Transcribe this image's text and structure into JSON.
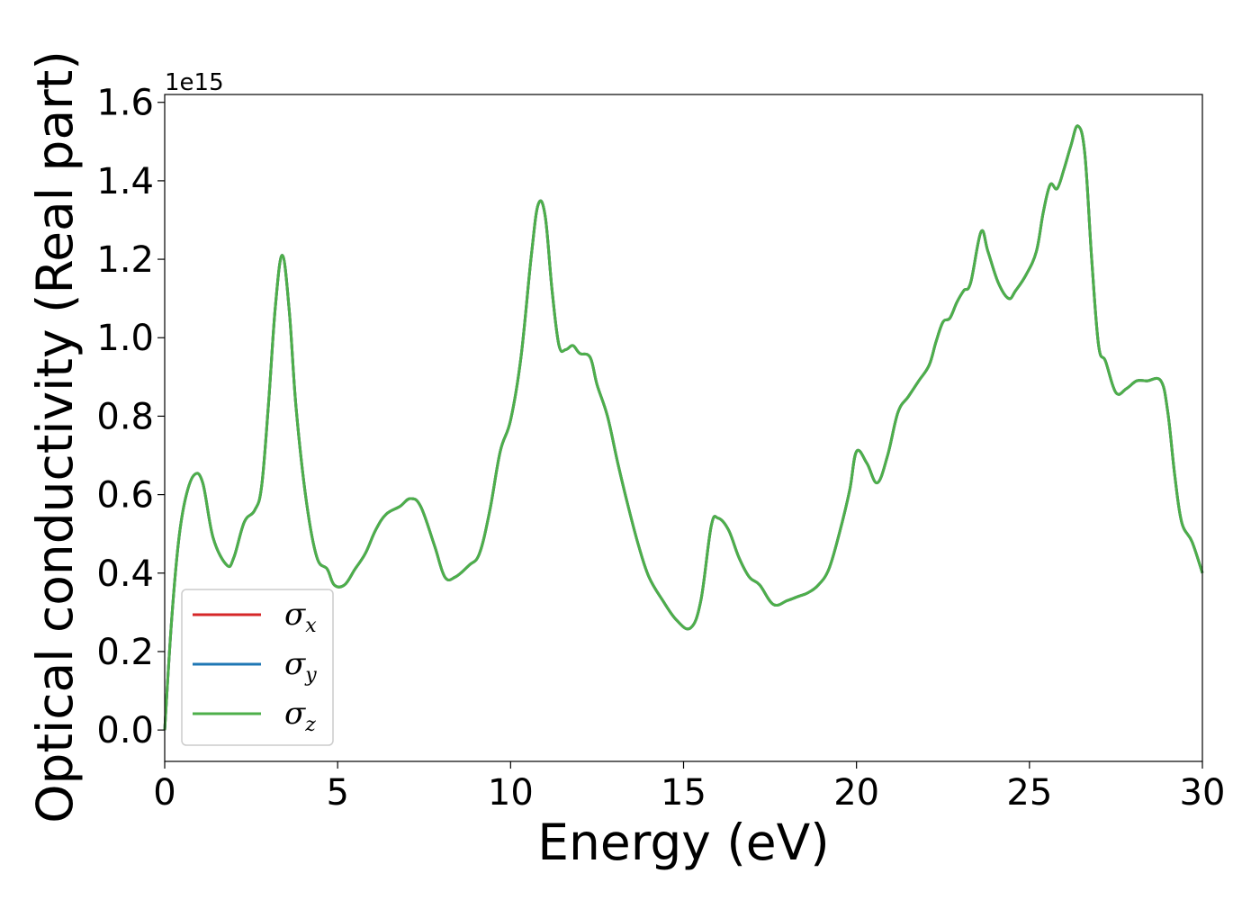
{
  "chart_data": {
    "type": "line",
    "xlabel": "Energy (eV)",
    "ylabel": "Optical conductivity (Real part)",
    "y_offset_label": "1e15",
    "xlim": [
      0,
      30
    ],
    "ylim": [
      -0.08,
      1.62
    ],
    "x_ticks": [
      0,
      5,
      10,
      15,
      20,
      25,
      30
    ],
    "x_tick_labels": [
      "0",
      "5",
      "10",
      "15",
      "20",
      "25",
      "30"
    ],
    "y_ticks": [
      0.0,
      0.2,
      0.4,
      0.6,
      0.8,
      1.0,
      1.2,
      1.4,
      1.6
    ],
    "y_tick_labels": [
      "0.0",
      "0.2",
      "0.4",
      "0.6",
      "0.8",
      "1.0",
      "1.2",
      "1.4",
      "1.6"
    ],
    "grid": false,
    "legend_position": "lower-left",
    "x": [
      0,
      0.2,
      0.4,
      0.6,
      0.85,
      1.1,
      1.4,
      1.8,
      2.0,
      2.3,
      2.6,
      2.8,
      3.0,
      3.2,
      3.4,
      3.6,
      3.8,
      4.1,
      4.4,
      4.7,
      4.9,
      5.2,
      5.5,
      5.8,
      6.1,
      6.4,
      6.8,
      7.1,
      7.4,
      7.8,
      8.1,
      8.4,
      8.8,
      9.1,
      9.4,
      9.7,
      10.0,
      10.3,
      10.6,
      10.8,
      11.0,
      11.2,
      11.4,
      11.6,
      11.8,
      12.0,
      12.3,
      12.5,
      12.8,
      13.1,
      13.4,
      13.7,
      14.0,
      14.4,
      14.8,
      15.2,
      15.5,
      15.8,
      16.0,
      16.3,
      16.6,
      16.9,
      17.2,
      17.6,
      18.0,
      18.3,
      18.6,
      18.9,
      19.2,
      19.5,
      19.8,
      20.0,
      20.3,
      20.6,
      20.9,
      21.2,
      21.5,
      21.8,
      22.1,
      22.3,
      22.5,
      22.7,
      22.9,
      23.1,
      23.3,
      23.6,
      23.8,
      24.1,
      24.4,
      24.6,
      24.9,
      25.2,
      25.4,
      25.6,
      25.8,
      26.0,
      26.2,
      26.4,
      26.6,
      26.8,
      27.0,
      27.2,
      27.5,
      27.8,
      28.1,
      28.4,
      28.8,
      29.0,
      29.2,
      29.4,
      29.7,
      30.0
    ],
    "series": [
      {
        "name": "σx",
        "color": "#d62728",
        "values": [
          0.0,
          0.28,
          0.48,
          0.59,
          0.65,
          0.63,
          0.49,
          0.42,
          0.44,
          0.53,
          0.56,
          0.62,
          0.83,
          1.08,
          1.21,
          1.07,
          0.82,
          0.58,
          0.44,
          0.41,
          0.37,
          0.37,
          0.41,
          0.45,
          0.51,
          0.55,
          0.57,
          0.59,
          0.57,
          0.47,
          0.39,
          0.39,
          0.42,
          0.45,
          0.56,
          0.71,
          0.79,
          0.95,
          1.21,
          1.34,
          1.31,
          1.12,
          0.98,
          0.97,
          0.98,
          0.96,
          0.95,
          0.88,
          0.8,
          0.68,
          0.57,
          0.47,
          0.39,
          0.33,
          0.28,
          0.26,
          0.33,
          0.52,
          0.54,
          0.51,
          0.44,
          0.39,
          0.37,
          0.32,
          0.33,
          0.34,
          0.35,
          0.37,
          0.41,
          0.5,
          0.61,
          0.71,
          0.68,
          0.63,
          0.7,
          0.81,
          0.85,
          0.89,
          0.93,
          0.99,
          1.04,
          1.05,
          1.09,
          1.12,
          1.14,
          1.27,
          1.22,
          1.14,
          1.1,
          1.12,
          1.16,
          1.22,
          1.32,
          1.39,
          1.38,
          1.43,
          1.49,
          1.54,
          1.47,
          1.2,
          0.98,
          0.94,
          0.86,
          0.87,
          0.89,
          0.89,
          0.89,
          0.81,
          0.65,
          0.53,
          0.48,
          0.4
        ]
      },
      {
        "name": "σy",
        "color": "#1f77b4",
        "values": [
          0.0,
          0.28,
          0.48,
          0.59,
          0.65,
          0.63,
          0.49,
          0.42,
          0.44,
          0.53,
          0.56,
          0.62,
          0.83,
          1.08,
          1.21,
          1.07,
          0.82,
          0.58,
          0.44,
          0.41,
          0.37,
          0.37,
          0.41,
          0.45,
          0.51,
          0.55,
          0.57,
          0.59,
          0.57,
          0.47,
          0.39,
          0.39,
          0.42,
          0.45,
          0.56,
          0.71,
          0.79,
          0.95,
          1.21,
          1.34,
          1.31,
          1.12,
          0.98,
          0.97,
          0.98,
          0.96,
          0.95,
          0.88,
          0.8,
          0.68,
          0.57,
          0.47,
          0.39,
          0.33,
          0.28,
          0.26,
          0.33,
          0.52,
          0.54,
          0.51,
          0.44,
          0.39,
          0.37,
          0.32,
          0.33,
          0.34,
          0.35,
          0.37,
          0.41,
          0.5,
          0.61,
          0.71,
          0.68,
          0.63,
          0.7,
          0.81,
          0.85,
          0.89,
          0.93,
          0.99,
          1.04,
          1.05,
          1.09,
          1.12,
          1.14,
          1.27,
          1.22,
          1.14,
          1.1,
          1.12,
          1.16,
          1.22,
          1.32,
          1.39,
          1.38,
          1.43,
          1.49,
          1.54,
          1.47,
          1.2,
          0.98,
          0.94,
          0.86,
          0.87,
          0.89,
          0.89,
          0.89,
          0.81,
          0.65,
          0.53,
          0.48,
          0.4
        ]
      },
      {
        "name": "σz",
        "color": "#4daf4a",
        "values": [
          0.0,
          0.28,
          0.48,
          0.59,
          0.65,
          0.63,
          0.49,
          0.42,
          0.44,
          0.53,
          0.56,
          0.62,
          0.83,
          1.08,
          1.21,
          1.07,
          0.82,
          0.58,
          0.44,
          0.41,
          0.37,
          0.37,
          0.41,
          0.45,
          0.51,
          0.55,
          0.57,
          0.59,
          0.57,
          0.47,
          0.39,
          0.39,
          0.42,
          0.45,
          0.56,
          0.71,
          0.79,
          0.95,
          1.21,
          1.34,
          1.31,
          1.12,
          0.98,
          0.97,
          0.98,
          0.96,
          0.95,
          0.88,
          0.8,
          0.68,
          0.57,
          0.47,
          0.39,
          0.33,
          0.28,
          0.26,
          0.33,
          0.52,
          0.54,
          0.51,
          0.44,
          0.39,
          0.37,
          0.32,
          0.33,
          0.34,
          0.35,
          0.37,
          0.41,
          0.5,
          0.61,
          0.71,
          0.68,
          0.63,
          0.7,
          0.81,
          0.85,
          0.89,
          0.93,
          0.99,
          1.04,
          1.05,
          1.09,
          1.12,
          1.14,
          1.27,
          1.22,
          1.14,
          1.1,
          1.12,
          1.16,
          1.22,
          1.32,
          1.39,
          1.38,
          1.43,
          1.49,
          1.54,
          1.47,
          1.2,
          0.98,
          0.94,
          0.86,
          0.87,
          0.89,
          0.89,
          0.89,
          0.81,
          0.65,
          0.53,
          0.48,
          0.4
        ]
      }
    ],
    "legend": [
      {
        "symbol": "σ",
        "sub": "x",
        "color": "#d62728"
      },
      {
        "symbol": "σ",
        "sub": "y",
        "color": "#1f77b4"
      },
      {
        "symbol": "σ",
        "sub": "z",
        "color": "#4daf4a"
      }
    ]
  }
}
